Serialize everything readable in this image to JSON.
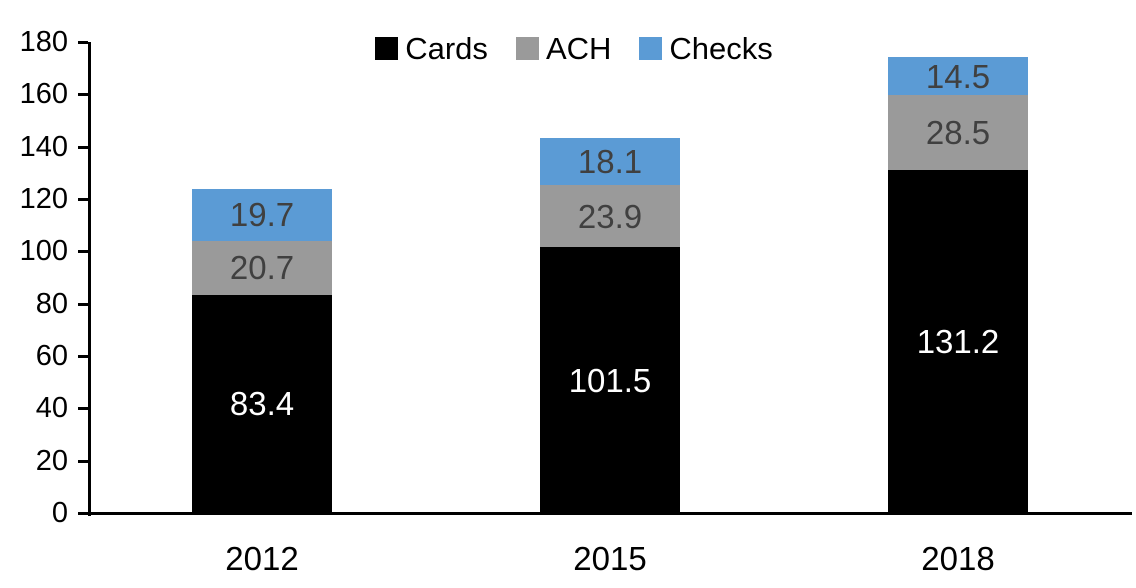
{
  "chart_data": {
    "type": "bar",
    "stacked": true,
    "title": "",
    "xlabel": "",
    "ylabel": "",
    "categories": [
      "2012",
      "2015",
      "2018"
    ],
    "series": [
      {
        "name": "Cards",
        "color": "#000000",
        "label_color": "#FFFFFF",
        "values": [
          83.4,
          101.5,
          131.2
        ]
      },
      {
        "name": "ACH",
        "color": "#9A9A9A",
        "label_color": "#404040",
        "values": [
          20.7,
          23.9,
          28.5
        ]
      },
      {
        "name": "Checks",
        "color": "#5B9BD5",
        "label_color": "#404040",
        "values": [
          19.7,
          18.1,
          14.5
        ]
      }
    ],
    "totals": [
      123.8,
      143.5,
      174.2
    ],
    "ylim": [
      0,
      180
    ],
    "ytick_step": 20,
    "ytick_labels": [
      "0",
      "20",
      "40",
      "60",
      "80",
      "100",
      "120",
      "140",
      "160",
      "180"
    ],
    "legend_position": "top-center",
    "grid": false,
    "axis_color": "#000000",
    "value_label_decimals": 1
  }
}
